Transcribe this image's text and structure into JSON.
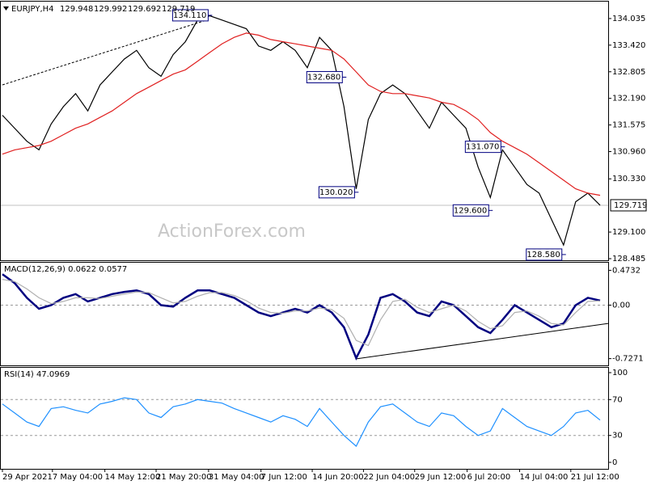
{
  "chart_data": [
    {
      "type": "line",
      "symbol": "EURJPY,H4",
      "ohlc": [
        129.948,
        129.992,
        129.692,
        129.719
      ],
      "watermark": "ActionForex.com",
      "xlim": [
        0,
        49
      ],
      "ylim": [
        128.485,
        134.37
      ],
      "yticks": [
        128.485,
        {
          "value": 129.1,
          "label": "129.100"
        },
        {
          "value": 130.33,
          "label": "130.330"
        },
        {
          "value": 130.96,
          "label": "130.960"
        },
        131.575,
        {
          "value": 132.19,
          "label": "132.190"
        },
        132.805,
        {
          "value": 133.42,
          "label": "133.420"
        },
        134.035
      ],
      "last_price": 129.719,
      "series": [
        {
          "color": "#000000",
          "values": [
            131.8,
            131.5,
            131.2,
            131.0,
            131.6,
            132.0,
            132.3,
            131.9,
            132.5,
            132.8,
            133.1,
            133.3,
            132.9,
            132.7,
            133.2,
            133.5,
            134.0,
            134.1,
            134.0,
            133.9,
            133.8,
            133.4,
            133.3,
            133.5,
            133.3,
            132.9,
            133.6,
            133.3,
            132.0,
            130.1,
            131.7,
            132.3,
            132.5,
            132.3,
            131.9,
            131.5,
            132.1,
            131.8,
            131.5,
            130.6,
            129.9,
            131.0,
            130.6,
            130.2,
            130.0,
            129.4,
            128.8,
            129.8,
            130.0,
            129.719
          ]
        },
        {
          "color": "#e02020",
          "values": [
            130.9,
            131.0,
            131.05,
            131.1,
            131.2,
            131.35,
            131.5,
            131.6,
            131.75,
            131.9,
            132.1,
            132.3,
            132.45,
            132.6,
            132.75,
            132.85,
            133.05,
            133.25,
            133.45,
            133.6,
            133.7,
            133.65,
            133.55,
            133.5,
            133.45,
            133.4,
            133.35,
            133.3,
            133.1,
            132.8,
            132.5,
            132.35,
            132.3,
            132.3,
            132.25,
            132.2,
            132.1,
            132.05,
            131.9,
            131.7,
            131.4,
            131.2,
            131.05,
            130.9,
            130.7,
            130.5,
            130.3,
            130.1,
            130.0,
            129.95
          ]
        }
      ],
      "annotations": [
        {
          "x": 17,
          "value": 134.11,
          "label": "134.110"
        },
        {
          "x": 28,
          "value": 132.68,
          "label": "132.680"
        },
        {
          "x": 29,
          "value": 130.02,
          "label": "130.020"
        },
        {
          "x": 41,
          "value": 131.07,
          "label": "131.070"
        },
        {
          "x": 40,
          "value": 129.6,
          "label": "129.600"
        },
        {
          "x": 46,
          "value": 128.58,
          "label": "128.580"
        }
      ]
    },
    {
      "type": "line",
      "title": "MACD(12,26,9) 0.0622 0.0577",
      "xlim": [
        0,
        49
      ],
      "ylim": [
        -0.808,
        0.5655
      ],
      "yticks": [
        -0.7271,
        {
          "value": 0,
          "label": "0.00"
        },
        0.4732
      ],
      "levels": [
        0
      ],
      "series": [
        {
          "color": "#000080",
          "values": [
            0.42,
            0.3,
            0.1,
            -0.05,
            0.0,
            0.1,
            0.15,
            0.05,
            0.1,
            0.15,
            0.18,
            0.2,
            0.15,
            0.0,
            -0.02,
            0.1,
            0.2,
            0.2,
            0.15,
            0.1,
            0.0,
            -0.1,
            -0.15,
            -0.1,
            -0.05,
            -0.1,
            0.0,
            -0.1,
            -0.3,
            -0.72,
            -0.4,
            0.1,
            0.15,
            0.05,
            -0.1,
            -0.15,
            0.05,
            0.0,
            -0.15,
            -0.3,
            -0.38,
            -0.2,
            0.0,
            -0.1,
            -0.2,
            -0.3,
            -0.25,
            0.0,
            0.1,
            0.0622
          ]
        },
        {
          "color": "#b0b0b0",
          "values": [
            0.35,
            0.32,
            0.22,
            0.1,
            0.02,
            0.05,
            0.1,
            0.1,
            0.09,
            0.12,
            0.15,
            0.18,
            0.17,
            0.1,
            0.03,
            0.05,
            0.12,
            0.17,
            0.17,
            0.13,
            0.06,
            -0.04,
            -0.1,
            -0.11,
            -0.08,
            -0.08,
            -0.04,
            -0.06,
            -0.18,
            -0.48,
            -0.55,
            -0.2,
            0.05,
            0.08,
            -0.03,
            -0.1,
            -0.05,
            0.0,
            -0.08,
            -0.22,
            -0.32,
            -0.28,
            -0.1,
            -0.08,
            -0.15,
            -0.25,
            -0.27,
            -0.1,
            0.05,
            0.0577
          ]
        }
      ]
    },
    {
      "type": "line",
      "title": "RSI(14) 47.0969",
      "xlim": [
        0,
        49
      ],
      "ylim": [
        -5.4,
        105.4
      ],
      "yticks": [
        0,
        30,
        70,
        100
      ],
      "levels": [
        70,
        30
      ],
      "xticks": [
        {
          "value": 0,
          "label": "29 Apr 2021"
        },
        {
          "value": 4.1,
          "label": "7 May 04:00"
        },
        {
          "value": 8.4,
          "label": "14 May 12:00"
        },
        {
          "value": 12.6,
          "label": "21 May 20:00"
        },
        {
          "value": 16.9,
          "label": "31 May 04:00"
        },
        {
          "value": 21.2,
          "label": "7 Jun 12:00"
        },
        {
          "value": 25.4,
          "label": "14 Jun 20:00"
        },
        {
          "value": 29.6,
          "label": "22 Jun 04:00"
        },
        {
          "value": 33.8,
          "label": "29 Jun 12:00"
        },
        {
          "value": 38.1,
          "label": "6 Jul 20:00"
        },
        {
          "value": 42.4,
          "label": "14 Jul 04:00"
        },
        {
          "value": 46.6,
          "label": "21 Jul 12:00"
        }
      ],
      "series": [
        {
          "color": "#1e90ff",
          "values": [
            65,
            55,
            45,
            40,
            60,
            62,
            58,
            55,
            65,
            68,
            72,
            70,
            55,
            50,
            62,
            65,
            70,
            68,
            66,
            60,
            55,
            50,
            45,
            52,
            48,
            40,
            60,
            45,
            30,
            18,
            45,
            62,
            65,
            55,
            45,
            40,
            55,
            52,
            40,
            30,
            35,
            60,
            50,
            40,
            35,
            30,
            40,
            55,
            58,
            47.0969
          ]
        }
      ]
    }
  ]
}
